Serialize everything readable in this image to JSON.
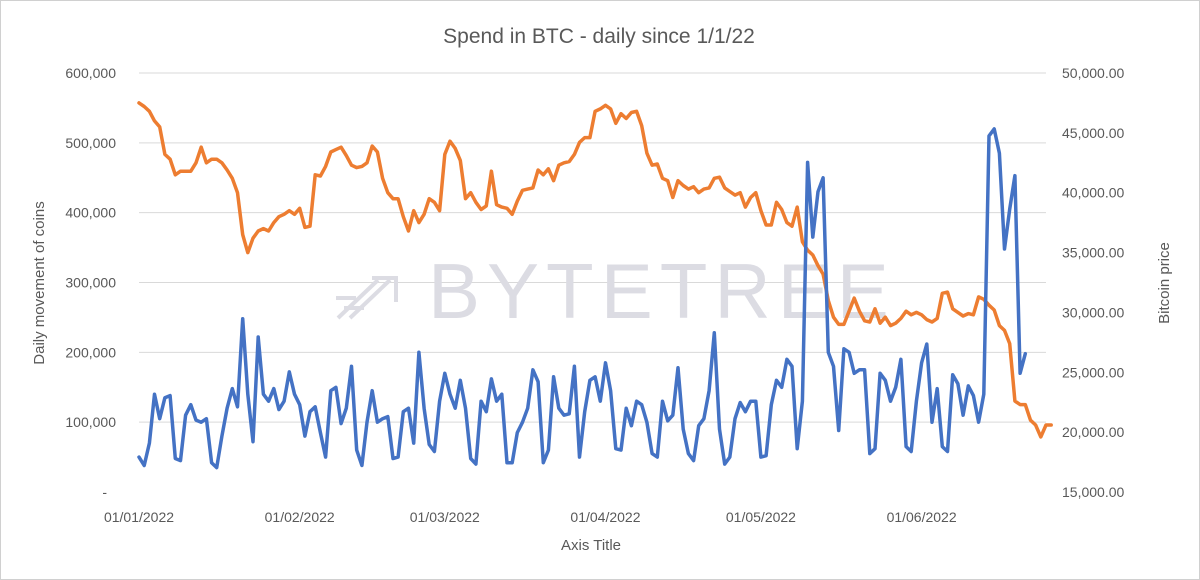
{
  "chart_data": {
    "type": "line",
    "title": "Spend in BTC - daily since 1/1/22",
    "xlabel": "Axis Title",
    "ylabel": "Daily movement of coins",
    "y2label": "Bitcoin price",
    "x_tick_labels": [
      "01/01/2022",
      "01/02/2022",
      "01/03/2022",
      "01/04/2022",
      "01/05/2022",
      "01/06/2022"
    ],
    "x_tick_days": [
      0,
      31,
      59,
      90,
      120,
      151
    ],
    "x_range_days": [
      0,
      175
    ],
    "y_left_ticks": [
      "-",
      "100,000",
      "200,000",
      "300,000",
      "400,000",
      "500,000",
      "600,000"
    ],
    "y_left_range": [
      0,
      600000
    ],
    "y_right_ticks": [
      "15,000.00",
      "20,000.00",
      "25,000.00",
      "30,000.00",
      "35,000.00",
      "40,000.00",
      "45,000.00",
      "50,000.00"
    ],
    "y_right_range": [
      15000,
      50000
    ],
    "grid": "horizontal",
    "legend": "none",
    "watermark": "BYTETREE",
    "colors": {
      "movement": "#4472c4",
      "price": "#ed7d31",
      "grid": "#d9d9d9",
      "text": "#595959",
      "watermark": "#dcdce3"
    },
    "series": [
      {
        "axis": "left",
        "values": [
          50000,
          38000,
          70000,
          140000,
          105000,
          135000,
          138000,
          48000,
          45000,
          110000,
          125000,
          103000,
          100000,
          105000,
          42000,
          35000,
          80000,
          120000,
          148000,
          122000,
          248000,
          140000,
          72000,
          222000,
          140000,
          130000,
          148000,
          118000,
          130000,
          172000,
          140000,
          125000,
          80000,
          115000,
          122000,
          85000,
          50000,
          145000,
          150000,
          98000,
          120000,
          180000,
          60000,
          38000,
          100000,
          145000,
          100000,
          105000,
          108000,
          48000,
          50000,
          115000,
          120000,
          70000,
          200000,
          120000,
          68000,
          58000,
          130000,
          170000,
          140000,
          120000,
          160000,
          120000,
          48000,
          40000,
          130000,
          115000,
          162000,
          130000,
          140000,
          42000,
          42000,
          85000,
          100000,
          120000,
          175000,
          158000,
          42000,
          60000,
          165000,
          120000,
          110000,
          112000,
          180000,
          50000,
          115000,
          160000,
          165000,
          130000,
          185000,
          145000,
          62000,
          60000,
          120000,
          95000,
          130000,
          125000,
          100000,
          55000,
          50000,
          130000,
          102000,
          110000,
          178000,
          90000,
          55000,
          45000,
          95000,
          105000,
          145000,
          228000,
          90000,
          40000,
          50000,
          105000,
          128000,
          115000,
          130000,
          130000,
          50000,
          52000,
          125000,
          160000,
          150000,
          190000,
          180000,
          62000,
          130000,
          472000,
          365000,
          430000,
          450000,
          200000,
          180000,
          88000,
          205000,
          200000,
          170000,
          175000,
          175000,
          55000,
          62000,
          170000,
          160000,
          130000,
          150000,
          190000,
          65000,
          58000,
          130000,
          185000,
          212000,
          100000,
          148000,
          65000,
          58000,
          168000,
          155000,
          110000,
          152000,
          138000,
          100000,
          140000,
          510000,
          520000,
          485000,
          348000,
          405000,
          453000,
          170000,
          198000
        ]
      },
      {
        "axis": "right",
        "values": [
          47500,
          47200,
          46800,
          46000,
          45500,
          43200,
          42800,
          41500,
          41800,
          41800,
          41800,
          42500,
          43800,
          42500,
          42800,
          42800,
          42500,
          41900,
          41200,
          40000,
          36500,
          35000,
          36200,
          36800,
          37000,
          36800,
          37500,
          38000,
          38200,
          38500,
          38200,
          38700,
          37100,
          37200,
          41500,
          41400,
          42200,
          43400,
          43600,
          43800,
          43100,
          42300,
          42100,
          42200,
          42500,
          43900,
          43400,
          41200,
          40000,
          39500,
          39500,
          38000,
          36800,
          38500,
          37500,
          38200,
          39500,
          39200,
          38500,
          43200,
          44300,
          43700,
          42700,
          39500,
          40000,
          39200,
          38600,
          38900,
          41800,
          39000,
          38800,
          38700,
          38200,
          39300,
          40200,
          40300,
          40400,
          41900,
          41500,
          42000,
          41000,
          42300,
          42500,
          42600,
          43200,
          44200,
          44600,
          44600,
          46800,
          47000,
          47300,
          47000,
          45800,
          46600,
          46200,
          46700,
          46800,
          45600,
          43300,
          42300,
          42400,
          41200,
          41000,
          39600,
          41000,
          40600,
          40300,
          40500,
          40000,
          40300,
          40400,
          41200,
          41300,
          40400,
          40100,
          39800,
          40000,
          38800,
          39600,
          40000,
          38500,
          37300,
          37300,
          39200,
          38600,
          37500,
          37200,
          38800,
          35900,
          35200,
          34800,
          33900,
          33200,
          31000,
          29600,
          29000,
          29000,
          30100,
          31200,
          30100,
          29300,
          29200,
          30300,
          29100,
          29600,
          28900,
          29100,
          29500,
          30100,
          29800,
          30000,
          29800,
          29400,
          29200,
          29500,
          31600,
          31700,
          30300,
          30000,
          29700,
          29900,
          29800,
          31300,
          31100,
          30600,
          30200,
          28900,
          28500,
          27400,
          22600,
          22300,
          22300,
          21000,
          20600,
          19600,
          20600,
          20600
        ]
      }
    ]
  }
}
